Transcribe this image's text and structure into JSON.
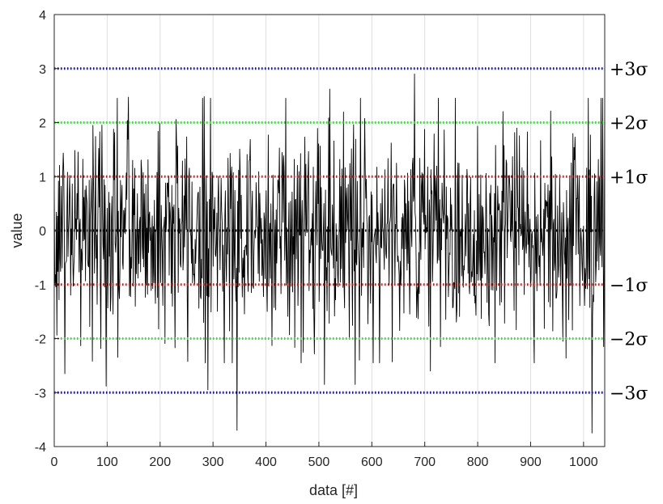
{
  "chart_data": {
    "type": "line",
    "title": "",
    "xlabel": "data [#]",
    "ylabel": "value",
    "xlim": [
      0,
      1040
    ],
    "ylim": [
      -4,
      4
    ],
    "x_ticks": [
      0,
      100,
      200,
      300,
      400,
      500,
      600,
      700,
      800,
      900,
      1000
    ],
    "y_ticks": [
      -4,
      -3,
      -2,
      -1,
      0,
      1,
      2,
      3,
      4
    ],
    "grid": true,
    "legend": "none",
    "series": [
      {
        "color": "#000000",
        "n_points": 1040,
        "std": 1.0,
        "mean": 0.0,
        "extrema": [
          {
            "x": 680,
            "y": 2.9
          },
          {
            "x": 520,
            "y": 2.62
          },
          {
            "x": 1040,
            "y": 2.72
          },
          {
            "x": 283,
            "y": 2.48
          },
          {
            "x": 140,
            "y": 2.47
          },
          {
            "x": 345,
            "y": -3.7
          },
          {
            "x": 1015,
            "y": -3.75
          },
          {
            "x": 98,
            "y": -2.88
          },
          {
            "x": 290,
            "y": -2.95
          },
          {
            "x": 510,
            "y": -2.85
          },
          {
            "x": 568,
            "y": -2.85
          },
          {
            "x": 710,
            "y": -2.6
          },
          {
            "x": 20,
            "y": -2.65
          }
        ]
      }
    ],
    "reference_lines": [
      {
        "y": 3,
        "label": "+3σ",
        "color": "#0000ff"
      },
      {
        "y": 2,
        "label": "+2σ",
        "color": "#00ff00"
      },
      {
        "y": 1,
        "label": "+1σ",
        "color": "#ff0000"
      },
      {
        "y": 0,
        "label": "",
        "color": "#000000"
      },
      {
        "y": -1,
        "label": "−1σ",
        "color": "#ff0000"
      },
      {
        "y": -2,
        "label": "−2σ",
        "color": "#00ff00"
      },
      {
        "y": -3,
        "label": "−3σ",
        "color": "#0000ff"
      }
    ]
  }
}
